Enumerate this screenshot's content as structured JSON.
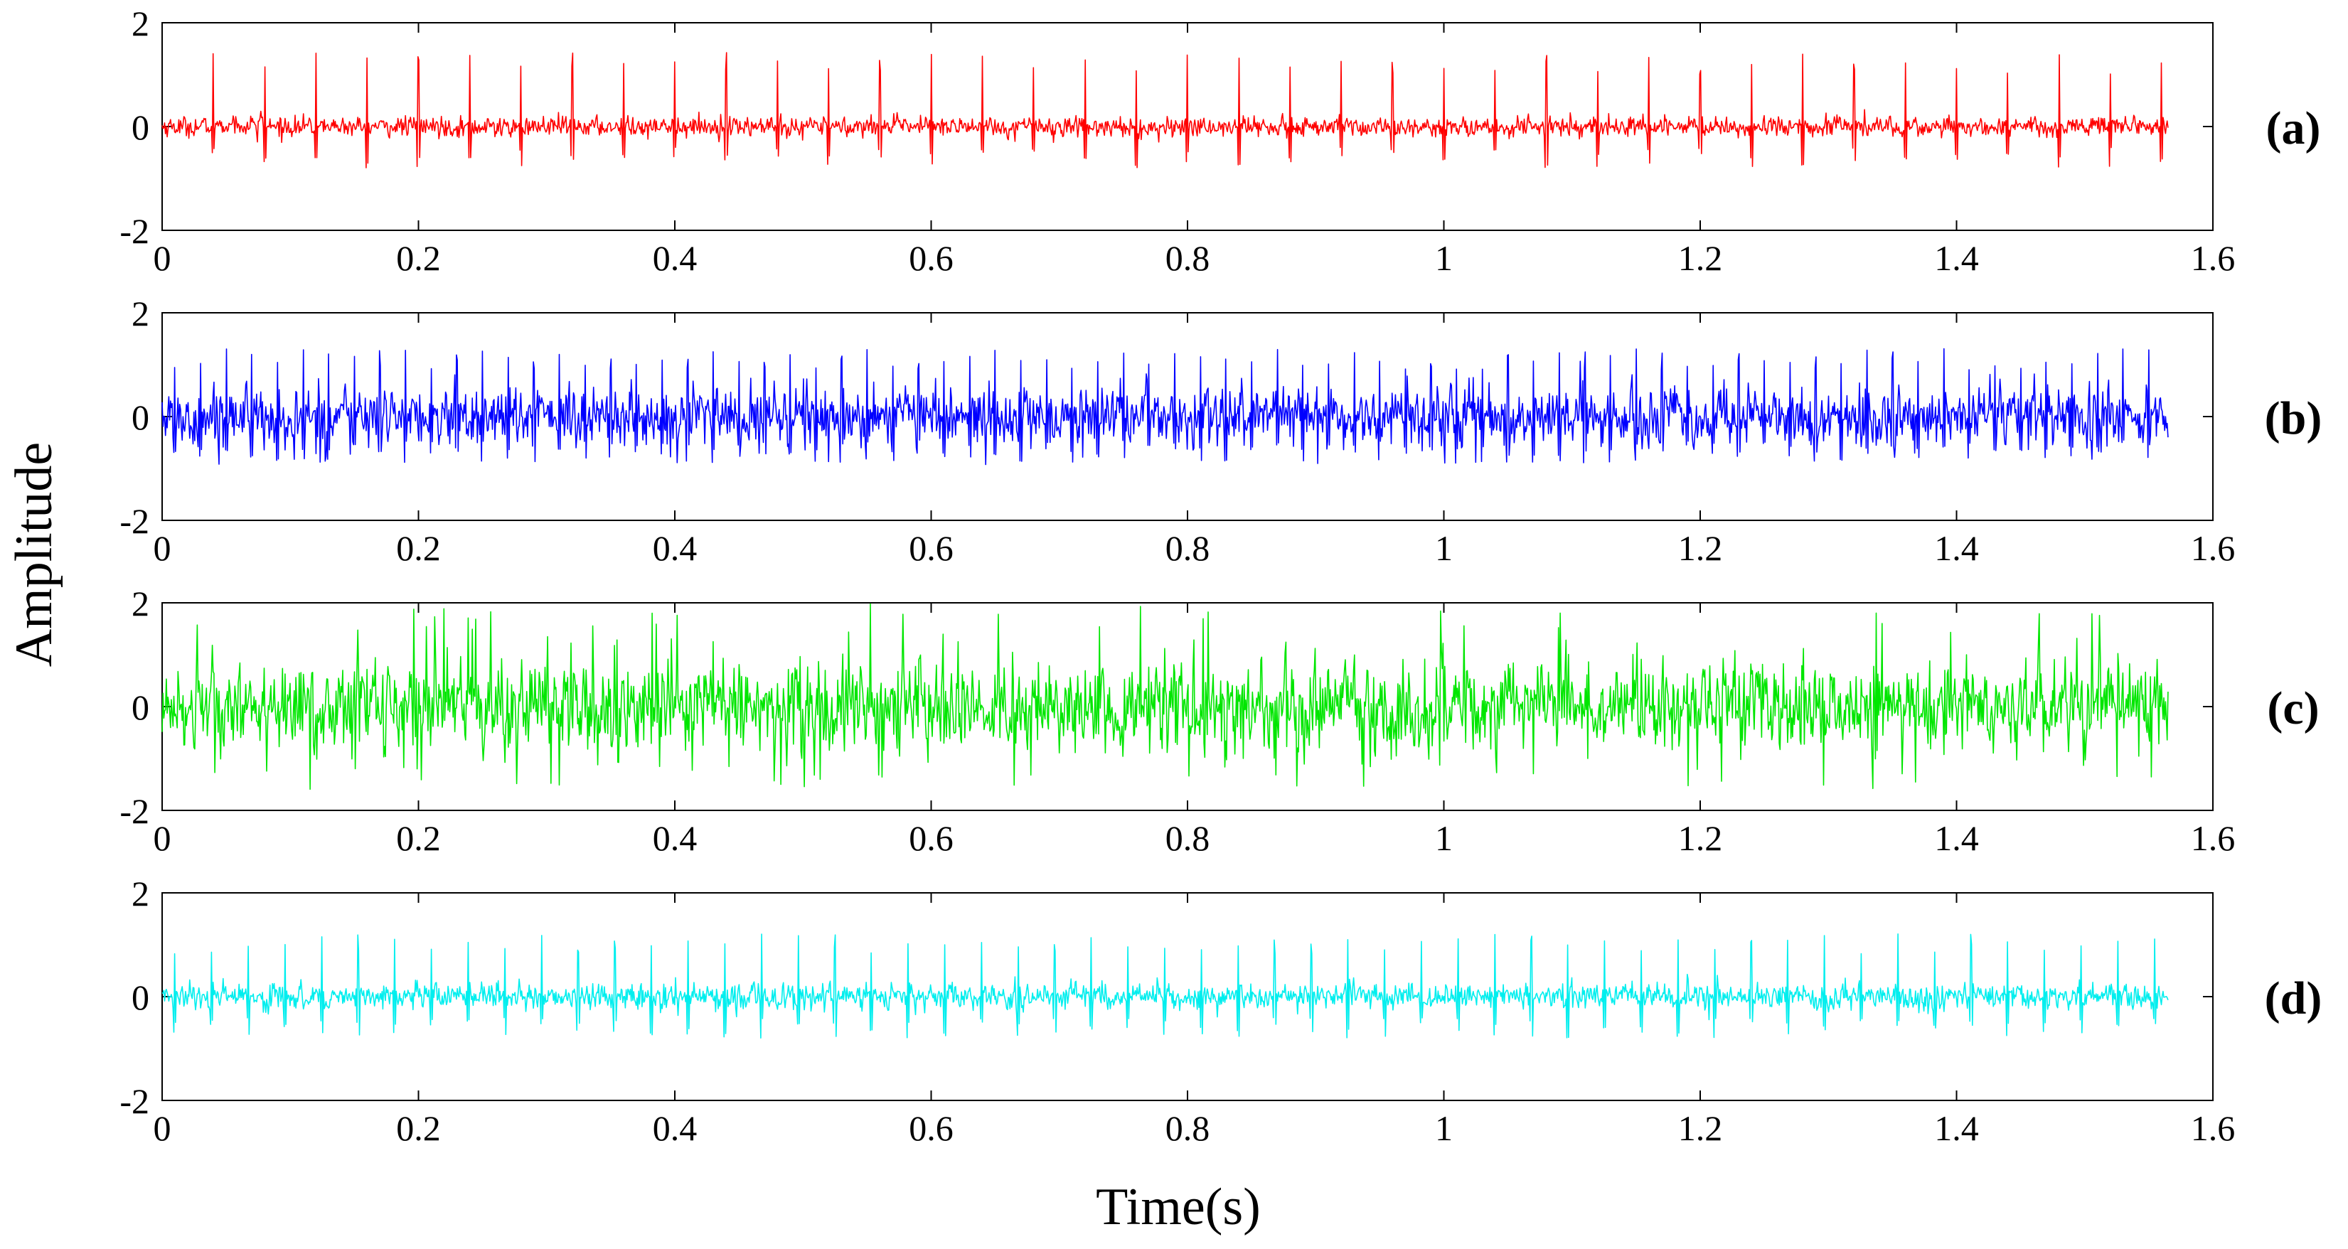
{
  "chart_data": {
    "type": "line",
    "ylabel": "Amplitude",
    "xlabel": "Time(s)",
    "xlim": [
      0,
      1.6
    ],
    "ylim": [
      -2,
      2
    ],
    "xticks": [
      0,
      0.2,
      0.4,
      0.6,
      0.8,
      1,
      1.2,
      1.4,
      1.6
    ],
    "xtick_labels": [
      "0",
      "0.2",
      "0.4",
      "0.6",
      "0.8",
      "1",
      "1.2",
      "1.4",
      "1.6"
    ],
    "yticks": [
      -2,
      0,
      2
    ],
    "ytick_labels": [
      "-2",
      "0",
      "2"
    ],
    "grid": false,
    "panels": [
      {
        "label": "(a)",
        "label_letter": "a",
        "name": "series-a",
        "color": "#ff0000",
        "duration": 1.565,
        "noise_std": 0.11,
        "impulse_period": 0.04,
        "impulse_offset": 0.04,
        "impulse_peak": 1.3,
        "impulse_min": -0.8
      },
      {
        "label": "(b)",
        "label_letter": "b",
        "name": "series-b",
        "color": "#0000ff",
        "duration": 1.565,
        "noise_std": 0.33,
        "impulse_period": 0.02,
        "impulse_offset": 0.01,
        "impulse_peak": 1.2,
        "impulse_min": -0.9
      },
      {
        "label": "(c)",
        "label_letter": "c",
        "name": "series-c",
        "color": "#00e600",
        "duration": 1.565,
        "noise_std": 0.5,
        "impulse_period": 0,
        "impulse_offset": 0,
        "impulse_peak": 2.0,
        "impulse_min": -1.6
      },
      {
        "label": "(d)",
        "label_letter": "d",
        "name": "series-d",
        "color": "#00eeee",
        "duration": 1.565,
        "noise_std": 0.14,
        "impulse_period": 0.0286,
        "impulse_offset": 0.01,
        "impulse_peak": 1.1,
        "impulse_min": -0.8
      }
    ]
  }
}
